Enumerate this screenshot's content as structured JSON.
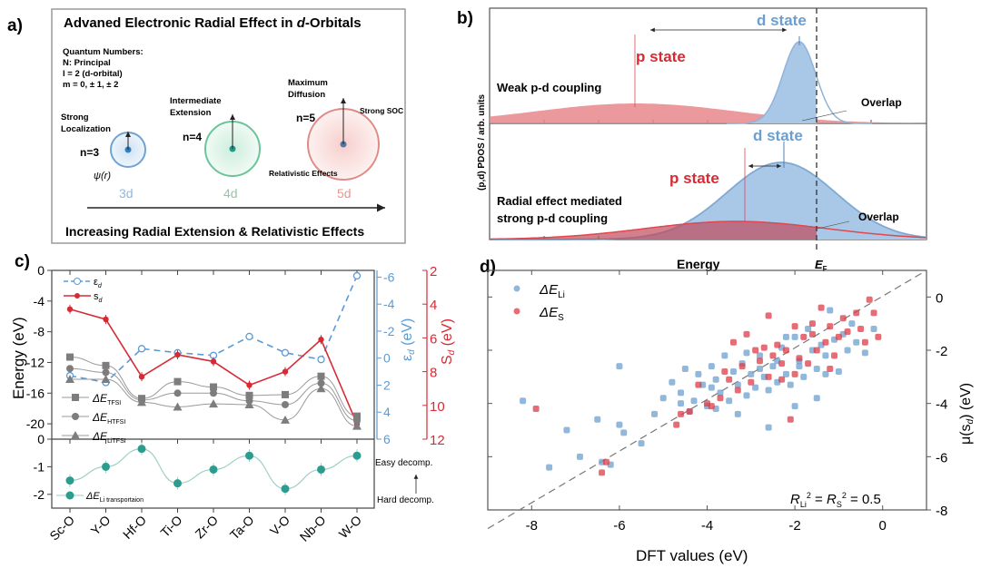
{
  "panel_labels": {
    "a": "a)",
    "b": "b)",
    "c": "c)",
    "d": "d)"
  },
  "panel_a": {
    "title_pre": "Advaned Electronic Radial Effect in ",
    "title_it": "d",
    "title_post": "-Orbitals",
    "quantum_lines": [
      "Quantum Numbers:",
      "N: Principal",
      "l = 2 (d-orbital)",
      "m = 0, ± 1, ± 2"
    ],
    "orbitals": [
      {
        "n": "n=3",
        "name": "3d",
        "desc": [
          "Strong",
          "Localization"
        ],
        "extra": "ψ(r)",
        "color": "#6fa3d4"
      },
      {
        "n": "n=4",
        "name": "4d",
        "desc": [
          "Intermediate",
          "Extension"
        ],
        "extra": "",
        "color": "#6cc49a"
      },
      {
        "n": "n=5",
        "name": "5d",
        "desc": [
          "Maximum",
          "Diffusion"
        ],
        "extra": "Relativistic Effects",
        "extra2": "Strong SOC",
        "color": "#e08a86"
      }
    ],
    "footer": "Increasing Radial Extension & Relativistic Effects"
  },
  "panel_b": {
    "ylabel": "(p,d) PDOS / arb. units",
    "xlabel": "Energy",
    "fermi_label": "E",
    "fermi_sub": "F",
    "top": {
      "p_label": "p state",
      "d_label": "d state",
      "note": "Weak p-d coupling",
      "overlap": "Overlap"
    },
    "bottom": {
      "p_label": "p state",
      "d_label": "d state",
      "note_lines": [
        "Radial effect mediated",
        "strong p-d coupling"
      ],
      "overlap": "Overlap"
    },
    "colors": {
      "p": "#e0474f",
      "d": "#7fa9d3"
    }
  },
  "chart_data": [
    {
      "type": "line",
      "panel": "c-top",
      "categories": [
        "Sc-O",
        "Y-O",
        "Hf-O",
        "Ti-O",
        "Zr-O",
        "Ta-O",
        "V-O",
        "Nb-O",
        "W-O"
      ],
      "ylabel": "Energy (eV)",
      "ylim": [
        -22,
        0
      ],
      "yticks": [
        0,
        -4,
        -8,
        -12,
        -16,
        -20
      ],
      "right_axis_1": {
        "label": "εd (eV)",
        "ticks": [
          -6,
          -4,
          -2,
          0,
          2,
          4,
          6
        ],
        "ylim": [
          6,
          -6.5
        ],
        "color": "#5b9bd5"
      },
      "right_axis_2": {
        "label": "Sd (eV)",
        "ticks": [
          2,
          4,
          6,
          8,
          10,
          12
        ],
        "ylim": [
          12,
          2
        ],
        "color": "#d62b35"
      },
      "series": [
        {
          "name": "εd",
          "axis": "right1",
          "values": [
            1.3,
            1.8,
            -0.7,
            -0.4,
            -0.2,
            -1.6,
            -0.4,
            0.1,
            -6.1
          ],
          "color": "#5b9bd5",
          "style": "dashed-open-circle"
        },
        {
          "name": "sd",
          "axis": "right2",
          "values": [
            4.3,
            4.9,
            8.3,
            7.0,
            7.4,
            8.8,
            8.0,
            6.1,
            11.1
          ],
          "color": "#d62b35",
          "style": "solid-filled-circle"
        },
        {
          "name": "ΔE TFSI",
          "axis": "left",
          "values": [
            -11.3,
            -12.4,
            -16.7,
            -14.5,
            -15.2,
            -16.3,
            -16.2,
            -13.8,
            -19.0
          ],
          "color": "#7d7d7d",
          "style": "square"
        },
        {
          "name": "ΔE HTFSI",
          "axis": "left",
          "values": [
            -12.8,
            -13.3,
            -16.9,
            -16.0,
            -16.0,
            -17.0,
            -17.5,
            -14.7,
            -19.6
          ],
          "color": "#7d7d7d",
          "style": "circle"
        },
        {
          "name": "ΔE LiTFSI",
          "axis": "left",
          "values": [
            -14.2,
            -14.2,
            -17.2,
            -17.8,
            -17.4,
            -17.5,
            -19.5,
            -15.4,
            -20.3
          ],
          "color": "#7d7d7d",
          "style": "triangle"
        }
      ]
    },
    {
      "type": "line",
      "panel": "c-bottom",
      "categories": [
        "Sc-O",
        "Y-O",
        "Hf-O",
        "Ti-O",
        "Zr-O",
        "Ta-O",
        "V-O",
        "Nb-O",
        "W-O"
      ],
      "ylim": [
        -2.5,
        0
      ],
      "yticks": [
        0,
        -1,
        -2
      ],
      "series": [
        {
          "name": "ΔE Li transportaion",
          "values": [
            -1.5,
            -1.0,
            -0.35,
            -1.6,
            -1.1,
            -0.6,
            -1.8,
            -1.1,
            -0.6
          ],
          "color": "#2a9d8f"
        }
      ],
      "annotations": [
        "Easy decomp.",
        "Hard decomp."
      ]
    },
    {
      "type": "scatter",
      "panel": "d",
      "xlabel": "DFT values (eV)",
      "ylabel": "μ(sd) (eV)",
      "xlim": [
        -9,
        1
      ],
      "ylim": [
        -8,
        1
      ],
      "xticks": [
        -8,
        -6,
        -4,
        -2,
        0
      ],
      "yticks": [
        0,
        -2,
        -4,
        -6,
        -8
      ],
      "annotation": "R_Li^2 = R_S^2 = 0.5",
      "legend": [
        {
          "name": "ΔE Li",
          "color": "#6c9fcf"
        },
        {
          "name": "ΔE S",
          "color": "#de3c47"
        }
      ],
      "series": [
        {
          "name": "ΔE Li",
          "color": "#6c9fcf",
          "points": [
            [
              -8.2,
              -3.9
            ],
            [
              -7.6,
              -6.4
            ],
            [
              -7.2,
              -5.0
            ],
            [
              -6.9,
              -6.0
            ],
            [
              -6.5,
              -4.6
            ],
            [
              -6.4,
              -6.2
            ],
            [
              -6.2,
              -6.3
            ],
            [
              -6.0,
              -4.8
            ],
            [
              -5.9,
              -5.1
            ],
            [
              -5.5,
              -5.5
            ],
            [
              -6.0,
              -2.6
            ],
            [
              -5.2,
              -4.4
            ],
            [
              -5.0,
              -3.8
            ],
            [
              -4.8,
              -3.2
            ],
            [
              -4.6,
              -3.6
            ],
            [
              -4.4,
              -4.3
            ],
            [
              -4.3,
              -3.9
            ],
            [
              -4.2,
              -2.9
            ],
            [
              -4.1,
              -3.3
            ],
            [
              -4.0,
              -4.1
            ],
            [
              -3.9,
              -2.6
            ],
            [
              -3.8,
              -3.1
            ],
            [
              -3.7,
              -3.6
            ],
            [
              -3.6,
              -2.2
            ],
            [
              -3.5,
              -3.9
            ],
            [
              -3.4,
              -2.8
            ],
            [
              -3.3,
              -3.3
            ],
            [
              -3.2,
              -2.5
            ],
            [
              -3.1,
              -3.7
            ],
            [
              -3.0,
              -2.9
            ],
            [
              -2.9,
              -3.4
            ],
            [
              -2.8,
              -2.2
            ],
            [
              -2.7,
              -3.0
            ],
            [
              -2.6,
              -3.5
            ],
            [
              -2.5,
              -2.6
            ],
            [
              -2.4,
              -3.2
            ],
            [
              -2.3,
              -1.9
            ],
            [
              -2.2,
              -2.9
            ],
            [
              -2.1,
              -3.3
            ],
            [
              -2.0,
              -1.5
            ],
            [
              -1.9,
              -2.4
            ],
            [
              -1.8,
              -3.0
            ],
            [
              -1.7,
              -1.2
            ],
            [
              -1.6,
              -2.0
            ],
            [
              -1.5,
              -2.7
            ],
            [
              -1.4,
              -1.8
            ],
            [
              -1.3,
              -2.2
            ],
            [
              -1.2,
              -0.5
            ],
            [
              -1.1,
              -1.6
            ],
            [
              -1.0,
              -2.8
            ],
            [
              -0.9,
              -1.4
            ],
            [
              -0.8,
              -2.0
            ],
            [
              -0.6,
              -1.7
            ],
            [
              -0.4,
              -2.1
            ],
            [
              -0.2,
              -1.2
            ],
            [
              -3.8,
              -4.2
            ],
            [
              -3.3,
              -4.4
            ],
            [
              -2.6,
              -4.9
            ],
            [
              -2.0,
              -4.1
            ],
            [
              -1.5,
              -3.8
            ],
            [
              -4.6,
              -4.0
            ],
            [
              -4.5,
              -2.7
            ],
            [
              -3.9,
              -3.4
            ],
            [
              -3.1,
              -2.1
            ],
            [
              -2.8,
              -2.7
            ],
            [
              -2.4,
              -2.4
            ],
            [
              -1.9,
              -2.6
            ],
            [
              -1.3,
              -2.9
            ],
            [
              -0.7,
              -1.0
            ],
            [
              -2.2,
              -1.5
            ]
          ]
        },
        {
          "name": "ΔE S",
          "color": "#de3c47",
          "points": [
            [
              -7.9,
              -4.2
            ],
            [
              -6.4,
              -6.6
            ],
            [
              -6.3,
              -6.2
            ],
            [
              -4.7,
              -4.8
            ],
            [
              -4.6,
              -4.4
            ],
            [
              -4.4,
              -4.3
            ],
            [
              -4.2,
              -3.3
            ],
            [
              -4.0,
              -4.0
            ],
            [
              -3.9,
              -4.1
            ],
            [
              -3.7,
              -3.8
            ],
            [
              -3.6,
              -2.8
            ],
            [
              -3.4,
              -1.7
            ],
            [
              -3.3,
              -3.5
            ],
            [
              -3.2,
              -2.6
            ],
            [
              -3.0,
              -3.2
            ],
            [
              -2.9,
              -2.0
            ],
            [
              -2.8,
              -2.4
            ],
            [
              -2.7,
              -1.9
            ],
            [
              -2.6,
              -3.0
            ],
            [
              -2.5,
              -2.2
            ],
            [
              -2.4,
              -1.8
            ],
            [
              -2.3,
              -2.5
            ],
            [
              -2.2,
              -2.0
            ],
            [
              -2.1,
              -4.6
            ],
            [
              -2.0,
              -1.1
            ],
            [
              -1.9,
              -2.3
            ],
            [
              -1.8,
              -1.5
            ],
            [
              -1.7,
              -2.5
            ],
            [
              -1.6,
              -1.4
            ],
            [
              -1.5,
              -2.0
            ],
            [
              -1.4,
              -0.4
            ],
            [
              -1.3,
              -1.7
            ],
            [
              -1.2,
              -1.1
            ],
            [
              -1.1,
              -2.2
            ],
            [
              -1.0,
              -1.5
            ],
            [
              -0.9,
              -0.8
            ],
            [
              -0.8,
              -1.3
            ],
            [
              -0.6,
              -0.6
            ],
            [
              -0.5,
              -1.2
            ],
            [
              -0.4,
              -1.7
            ],
            [
              -0.3,
              -0.1
            ],
            [
              -0.2,
              -0.6
            ],
            [
              -0.1,
              -1.5
            ],
            [
              -2.6,
              -0.7
            ],
            [
              -3.1,
              -1.4
            ],
            [
              -2.3,
              -3.1
            ],
            [
              -1.2,
              -2.7
            ],
            [
              -3.5,
              -3.1
            ],
            [
              -2.0,
              -2.9
            ],
            [
              -1.6,
              -1.0
            ]
          ]
        }
      ]
    }
  ],
  "panel_c_legend": {
    "top": [
      {
        "sym": "ε",
        "sub": "d"
      },
      {
        "sym": "s",
        "sub": "d"
      }
    ],
    "bottom": [
      {
        "sym": "ΔE",
        "sub": "TFSI"
      },
      {
        "sym": "ΔE",
        "sub": "HTFSI"
      },
      {
        "sym": "ΔE",
        "sub": "LiTFSI"
      }
    ],
    "lower": {
      "sym": "ΔE",
      "sub": "Li transportaion"
    }
  }
}
